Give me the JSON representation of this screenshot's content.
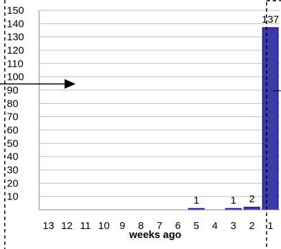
{
  "chart_data": {
    "type": "bar",
    "categories": [
      "13",
      "12",
      "11",
      "10",
      "9",
      "8",
      "7",
      "6",
      "5",
      "4",
      "3",
      "2",
      "1"
    ],
    "values": [
      0,
      0,
      0,
      0,
      0,
      0,
      0,
      0,
      1,
      0,
      1,
      2,
      137
    ],
    "data_labels": [
      "",
      "",
      "",
      "",
      "",
      "",
      "",
      "",
      "1",
      "",
      "1",
      "2",
      "137"
    ],
    "yticks": [
      "10",
      "20",
      "30",
      "40",
      "50",
      "60",
      "70",
      "80",
      "90",
      "100",
      "110",
      "120",
      "130",
      "140",
      "150"
    ],
    "title": "",
    "xlabel": "weeks ago",
    "ylabel": "",
    "ylim": [
      0,
      150
    ],
    "grid": true,
    "legend": "none",
    "colors": {
      "bar_fill": "#3b3ba8",
      "bar_edge": "#000080",
      "grid": "#c0c0c0",
      "axis": "#808080",
      "dashed_frame": "#000000"
    }
  }
}
